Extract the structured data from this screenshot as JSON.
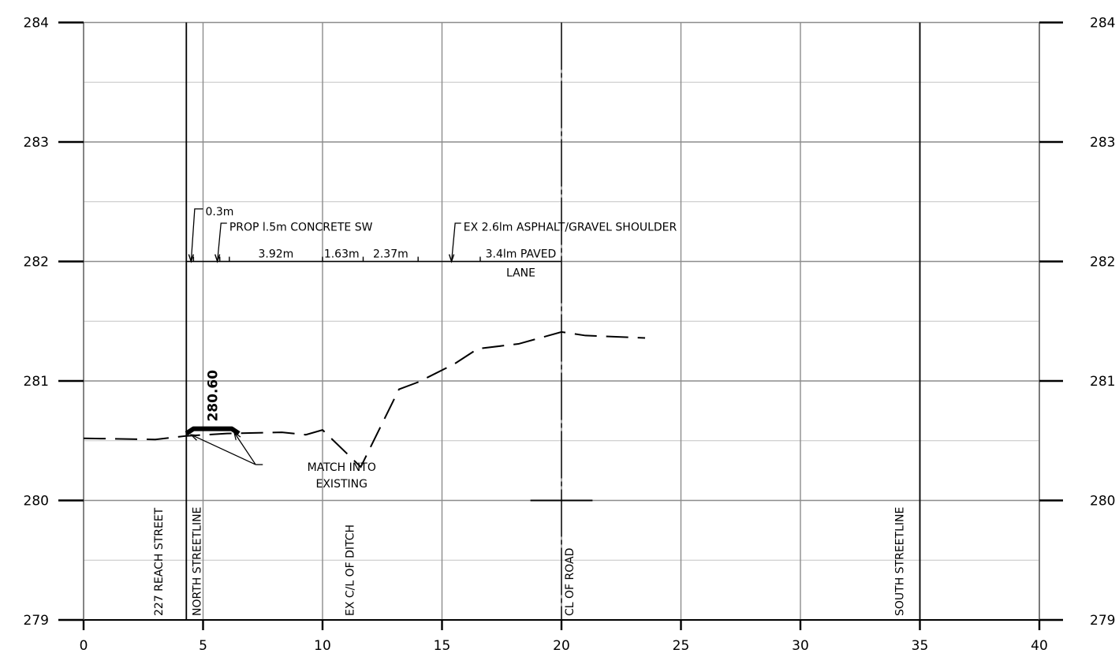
{
  "chart_data": {
    "type": "line",
    "xlim": [
      0,
      40
    ],
    "ylim": [
      279,
      284
    ],
    "x_ticks": [
      "0",
      "5",
      "10",
      "15",
      "20",
      "25",
      "30",
      "35",
      "40"
    ],
    "y_ticks": [
      "279",
      "280",
      "281",
      "282",
      "283",
      "284"
    ],
    "grid": true,
    "existing_ground": {
      "x": [
        0,
        3,
        4.3,
        6,
        8.3,
        9.3,
        10,
        11.6,
        13.2,
        14,
        15.5,
        16.5,
        18.2,
        20,
        21,
        23.5
      ],
      "y": [
        280.52,
        280.51,
        280.54,
        280.56,
        280.57,
        280.55,
        280.59,
        280.28,
        280.93,
        280.99,
        281.14,
        281.27,
        281.31,
        281.41,
        281.38,
        281.36
      ]
    },
    "proposed_sidewalk": {
      "x": [
        4.3,
        4.6,
        6.2,
        6.5
      ],
      "y": [
        280.56,
        280.6,
        280.6,
        280.56
      ]
    },
    "elevation_label": {
      "text": "280.60",
      "x": 5.6,
      "y": 280.66
    },
    "dimension_line": {
      "y": 282,
      "x_start": 4.3,
      "x_end": 20,
      "ticks": [
        4.3,
        4.6,
        5.7,
        6.1,
        10,
        11.7,
        14,
        16.6
      ],
      "arrows": [
        4.5,
        5.6,
        15.4
      ],
      "labels": [
        {
          "text": "3.92m",
          "x": 8.05
        },
        {
          "text": "1.63m",
          "x": 10.8
        },
        {
          "text": "2.37m",
          "x": 12.85
        },
        {
          "text": "3.4lm PAVED",
          "x": 18.3
        },
        {
          "text": "LANE",
          "x": 18.3,
          "y": 281.9
        }
      ]
    },
    "callouts": [
      {
        "text": "0.3m",
        "x": 5.1,
        "y": 282.42,
        "leader": [
          [
            4.5,
            282
          ],
          [
            4.65,
            282.44
          ],
          [
            5.0,
            282.44
          ]
        ]
      },
      {
        "text": "PROP l.5m CONCRETE SW",
        "x": 6.1,
        "y": 282.29,
        "leader": [
          [
            5.6,
            282
          ],
          [
            5.75,
            282.32
          ],
          [
            6.0,
            282.32
          ]
        ]
      },
      {
        "text": "EX 2.6lm ASPHALT/GRAVEL SHOULDER",
        "x": 15.9,
        "y": 282.29,
        "leader": [
          [
            15.4,
            282
          ],
          [
            15.55,
            282.32
          ],
          [
            15.8,
            282.32
          ]
        ]
      }
    ],
    "match_note": {
      "lines": [
        "MATCH INTO",
        "EXISTING"
      ],
      "x": 10.8,
      "y": 280.28,
      "leaders": [
        [
          [
            7.2,
            280.3
          ],
          [
            4.5,
            280.55
          ]
        ],
        [
          [
            7.2,
            280.3
          ],
          [
            6.3,
            280.57
          ]
        ]
      ],
      "elbow": [
        [
          7.2,
          280.3
        ],
        [
          7.5,
          280.3
        ]
      ]
    },
    "vertical_lines": [
      {
        "x": 4.3,
        "label": "227 REACH STREET",
        "label_x": 3.3,
        "style": "solid"
      },
      {
        "x": 4.3,
        "label": "NORTH STREETLINE",
        "label_x": 4.9,
        "style": "solid"
      },
      {
        "x": 20,
        "label": "CL OF ROAD",
        "label_x": 20.5,
        "style": "center"
      },
      {
        "x": 35,
        "label": "SOUTH STREETLINE",
        "label_x": 34.3,
        "style": "solid"
      }
    ],
    "ditch_label": {
      "text": "EX C/L OF DITCH",
      "x": 11.3
    },
    "road_marker": {
      "x1": 18.7,
      "x2": 21.3,
      "y": 280
    }
  }
}
